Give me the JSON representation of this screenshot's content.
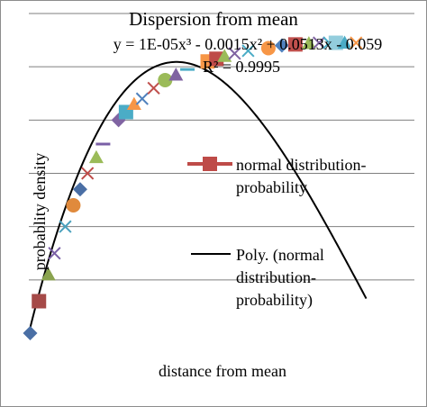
{
  "chart_data": {
    "type": "scatter",
    "title": "Dispersion from mean",
    "xlabel": "distance from mean",
    "ylabel": "probablity  density",
    "xlim": [
      0,
      55
    ],
    "ylim": [
      0,
      0.6
    ],
    "grid": true,
    "legend_position": "right",
    "trendline": {
      "type": "polynomial",
      "order": 3,
      "coefficients": [
        1e-05,
        -0.0015,
        0.0513,
        -0.059
      ],
      "equation": "y = 1E-05x³ - 0.0015x² + 0.0513x - 0.059",
      "r_squared": "R² = 0.9995",
      "color": "#000000"
    },
    "legend": [
      {
        "label": "normal distribution-probability",
        "label_lines": [
          "normal distribution-",
          "probability"
        ],
        "marker": "square",
        "color": "#be4b48"
      },
      {
        "label": "Poly. (normal distribution-probability)",
        "label_lines": [
          "Poly. (normal",
          "distribution-",
          "probability)"
        ],
        "marker": "line",
        "color": "#000000"
      }
    ],
    "series": [
      {
        "name": "normal distribution-probability",
        "points": [
          {
            "x": 0.2,
            "y": 0.0,
            "shape": "diamond",
            "color": "#4a6fa5"
          },
          {
            "x": 1.5,
            "y": 0.06,
            "shape": "square",
            "color": "#a54a48"
          },
          {
            "x": 2.9,
            "y": 0.11,
            "shape": "triangle",
            "color": "#8aa34f"
          },
          {
            "x": 3.8,
            "y": 0.15,
            "shape": "x",
            "color": "#7a5fa6"
          },
          {
            "x": 5.4,
            "y": 0.2,
            "shape": "x",
            "color": "#4ba1bd"
          },
          {
            "x": 6.6,
            "y": 0.24,
            "shape": "circle",
            "color": "#e08a3c"
          },
          {
            "x": 7.6,
            "y": 0.27,
            "shape": "diamond",
            "color": "#4a6fa5"
          },
          {
            "x": 8.7,
            "y": 0.3,
            "shape": "x",
            "color": "#be4b48"
          },
          {
            "x": 10.0,
            "y": 0.33,
            "shape": "triangle",
            "color": "#9bbb59"
          },
          {
            "x": 11.0,
            "y": 0.355,
            "shape": "dash",
            "color": "#7a5fa6"
          },
          {
            "x": 13.3,
            "y": 0.4,
            "shape": "diamond",
            "color": "#8064a2"
          },
          {
            "x": 14.4,
            "y": 0.415,
            "shape": "square",
            "color": "#4bacc6"
          },
          {
            "x": 15.6,
            "y": 0.43,
            "shape": "triangle",
            "color": "#f79646"
          },
          {
            "x": 16.8,
            "y": 0.44,
            "shape": "x",
            "color": "#4f81bd"
          },
          {
            "x": 18.5,
            "y": 0.46,
            "shape": "x",
            "color": "#c0504d"
          },
          {
            "x": 20.2,
            "y": 0.475,
            "shape": "circle",
            "color": "#9bbb59"
          },
          {
            "x": 21.8,
            "y": 0.485,
            "shape": "triangle",
            "color": "#8064a2"
          },
          {
            "x": 23.5,
            "y": 0.495,
            "shape": "dash",
            "color": "#4bacc6"
          },
          {
            "x": 26.5,
            "y": 0.51,
            "shape": "square",
            "color": "#f79646"
          },
          {
            "x": 27.8,
            "y": 0.515,
            "shape": "square",
            "color": "#be4b48"
          },
          {
            "x": 29.0,
            "y": 0.52,
            "shape": "triangle",
            "color": "#9bbb59"
          },
          {
            "x": 30.5,
            "y": 0.525,
            "shape": "x",
            "color": "#8064a2"
          },
          {
            "x": 32.5,
            "y": 0.53,
            "shape": "x",
            "color": "#4bacc6"
          },
          {
            "x": 35.5,
            "y": 0.535,
            "shape": "circle",
            "color": "#f79646"
          },
          {
            "x": 37.5,
            "y": 0.54,
            "shape": "diamond",
            "color": "#4f81bd"
          },
          {
            "x": 39.5,
            "y": 0.542,
            "shape": "square",
            "color": "#c0504d"
          },
          {
            "x": 41.5,
            "y": 0.544,
            "shape": "triangle",
            "color": "#9bbb59"
          },
          {
            "x": 43.0,
            "y": 0.545,
            "shape": "x",
            "color": "#8064a2"
          },
          {
            "x": 44.5,
            "y": 0.545,
            "shape": "x",
            "color": "#4bacc6"
          },
          {
            "x": 45.5,
            "y": 0.545,
            "shape": "square",
            "color": "#93cddd"
          },
          {
            "x": 46.8,
            "y": 0.545,
            "shape": "triangle",
            "color": "#4bacc6"
          },
          {
            "x": 48.5,
            "y": 0.545,
            "shape": "x",
            "color": "#f79646"
          }
        ]
      }
    ]
  }
}
